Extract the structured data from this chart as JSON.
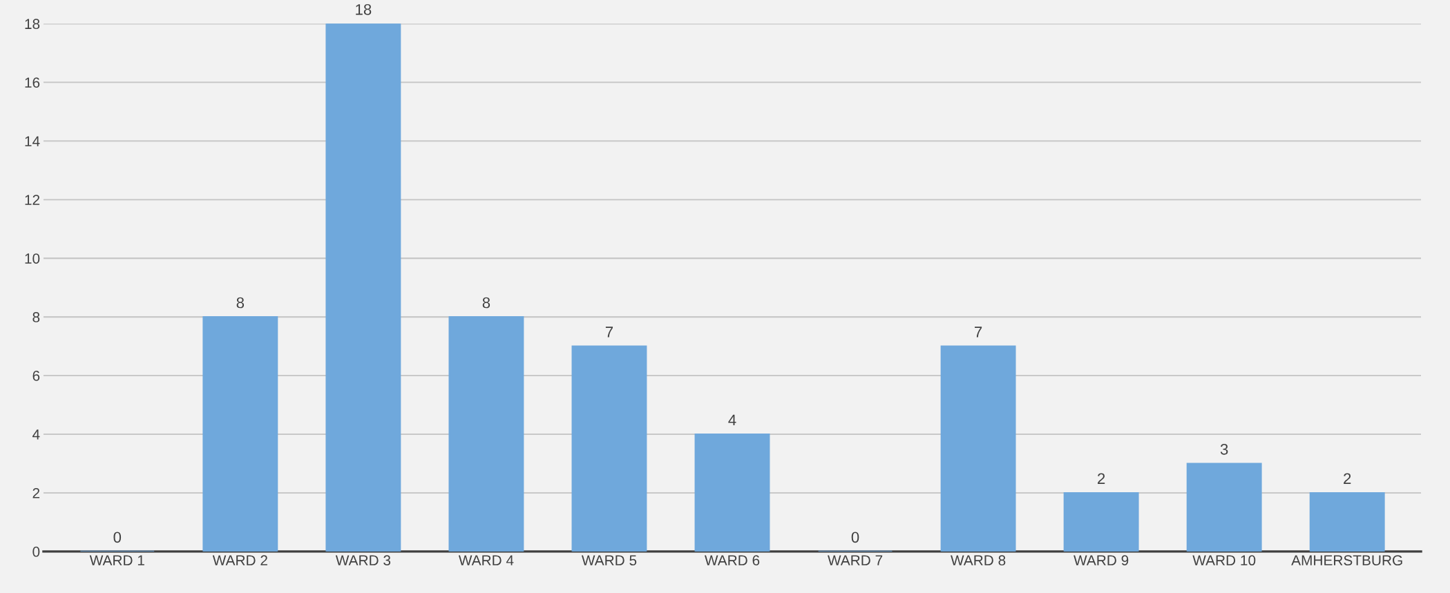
{
  "chart_data": {
    "type": "bar",
    "categories": [
      "WARD 1",
      "WARD 2",
      "WARD 3",
      "WARD 4",
      "WARD 5",
      "WARD 6",
      "WARD 7",
      "WARD 8",
      "WARD 9",
      "WARD 10",
      "AMHERSTBURG"
    ],
    "values": [
      0,
      8,
      18,
      8,
      7,
      4,
      0,
      7,
      2,
      3,
      2
    ],
    "color": "#6fa8dc",
    "ylim": [
      0,
      18
    ],
    "yticks": [
      0,
      2,
      4,
      6,
      8,
      10,
      12,
      14,
      16,
      18
    ],
    "grid": "y",
    "data_labels": true
  }
}
